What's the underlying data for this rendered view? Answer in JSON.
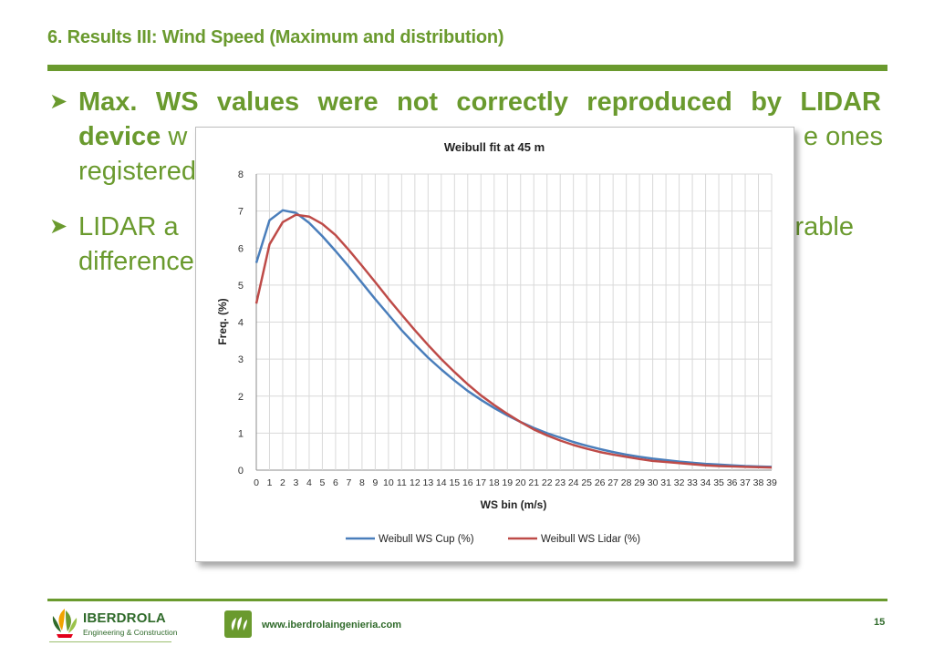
{
  "slide": {
    "title": "6. Results III: Wind Speed (Maximum and distribution)",
    "bullets": [
      {
        "line1": "Max. WS values were not correctly reproduced by LIDAR",
        "line2_bold": "device",
        "line2_rest": " w",
        "line2_right": "e ones",
        "line3": "registered"
      },
      {
        "line1": "LIDAR a",
        "line1_right": "rable",
        "line2": "difference"
      }
    ]
  },
  "chart_data": {
    "type": "line",
    "title": "Weibull fit at 45 m",
    "xlabel": "WS bin (m/s)",
    "ylabel": "Freq. (%)",
    "x": [
      0,
      1,
      2,
      3,
      4,
      5,
      6,
      7,
      8,
      9,
      10,
      11,
      12,
      13,
      14,
      15,
      16,
      17,
      18,
      19,
      20,
      21,
      22,
      23,
      24,
      25,
      26,
      27,
      28,
      29,
      30,
      31,
      32,
      33,
      34,
      35,
      36,
      37,
      38,
      39
    ],
    "xlim": [
      0,
      39
    ],
    "ylim": [
      0,
      8
    ],
    "yticks": [
      0,
      1,
      2,
      3,
      4,
      5,
      6,
      7,
      8
    ],
    "grid": true,
    "legend_position": "bottom",
    "series": [
      {
        "name": "Weibull WS Cup (%)",
        "color": "#4a7ebb",
        "values": [
          5.6,
          6.75,
          7.02,
          6.95,
          6.68,
          6.32,
          5.92,
          5.5,
          5.06,
          4.62,
          4.2,
          3.78,
          3.4,
          3.04,
          2.72,
          2.42,
          2.14,
          1.9,
          1.68,
          1.48,
          1.3,
          1.14,
          1.0,
          0.88,
          0.76,
          0.66,
          0.57,
          0.49,
          0.42,
          0.36,
          0.31,
          0.27,
          0.23,
          0.2,
          0.17,
          0.15,
          0.13,
          0.11,
          0.1,
          0.09
        ]
      },
      {
        "name": "Weibull WS Lidar (%)",
        "color": "#be4b48",
        "values": [
          4.5,
          6.1,
          6.7,
          6.9,
          6.85,
          6.65,
          6.35,
          5.95,
          5.52,
          5.08,
          4.63,
          4.2,
          3.78,
          3.38,
          3.0,
          2.65,
          2.32,
          2.02,
          1.76,
          1.52,
          1.3,
          1.1,
          0.94,
          0.8,
          0.68,
          0.58,
          0.49,
          0.42,
          0.36,
          0.3,
          0.25,
          0.22,
          0.19,
          0.16,
          0.13,
          0.11,
          0.1,
          0.09,
          0.08,
          0.07
        ]
      }
    ]
  },
  "footer": {
    "logo_name": "IBERDROLA",
    "logo_sub": "Engineering & Construction",
    "website": "www.iberdrolaingenieria.com",
    "page_number": "15"
  },
  "colors": {
    "accent": "#6a9a2e",
    "footer_text": "#2f6a2a"
  }
}
